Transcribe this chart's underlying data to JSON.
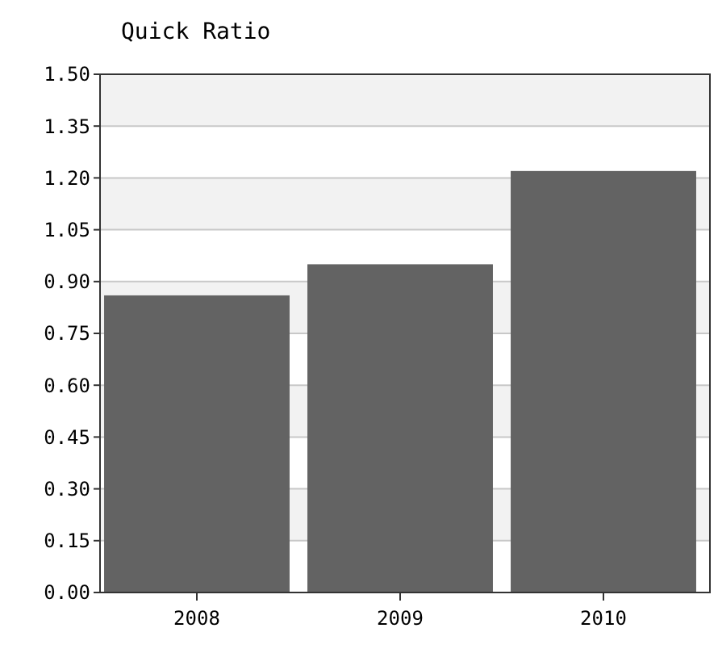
{
  "chart_data": {
    "type": "bar",
    "title": "Quick Ratio",
    "categories": [
      "2008",
      "2009",
      "2010"
    ],
    "values": [
      0.86,
      0.95,
      1.22
    ],
    "color": "#636363",
    "ylim": [
      0,
      1.5
    ],
    "yticks": [
      {
        "value": 0,
        "label": "0.00"
      },
      {
        "value": 0.15,
        "label": "0.15"
      },
      {
        "value": 0.3,
        "label": "0.30"
      },
      {
        "value": 0.45,
        "label": "0.45"
      },
      {
        "value": 0.6,
        "label": "0.60"
      },
      {
        "value": 0.75,
        "label": "0.75"
      },
      {
        "value": 0.9,
        "label": "0.90"
      },
      {
        "value": 1.05,
        "label": "1.05"
      },
      {
        "value": 1.2,
        "label": "1.20"
      },
      {
        "value": 1.35,
        "label": "1.35"
      },
      {
        "value": 1.5,
        "label": "1.50"
      }
    ],
    "grid": "y"
  }
}
